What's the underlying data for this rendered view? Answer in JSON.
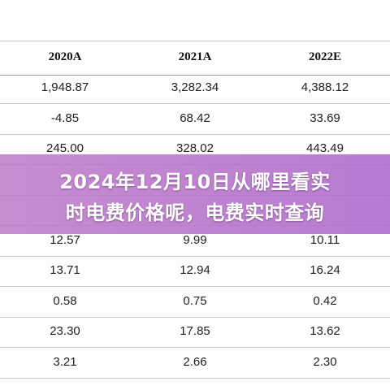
{
  "table": {
    "columns": [
      "2020A",
      "2021A",
      "2022E"
    ],
    "rows": [
      [
        "1,948.87",
        "3,282.34",
        "4,388.12"
      ],
      [
        "-4.85",
        "68.42",
        "33.69"
      ],
      [
        "245.00",
        "328.02",
        "443.49"
      ],
      [
        "12.57",
        "9.99",
        "10.11"
      ],
      [
        "13.71",
        "12.94",
        "16.24"
      ],
      [
        "0.58",
        "0.75",
        "0.42"
      ],
      [
        "23.30",
        "17.85",
        "13.62"
      ],
      [
        "3.21",
        "2.66",
        "2.30"
      ]
    ]
  },
  "banner": {
    "lines": [
      "2024年12月10日从哪里看实",
      "时电费价格呢，电费实时查询"
    ]
  }
}
